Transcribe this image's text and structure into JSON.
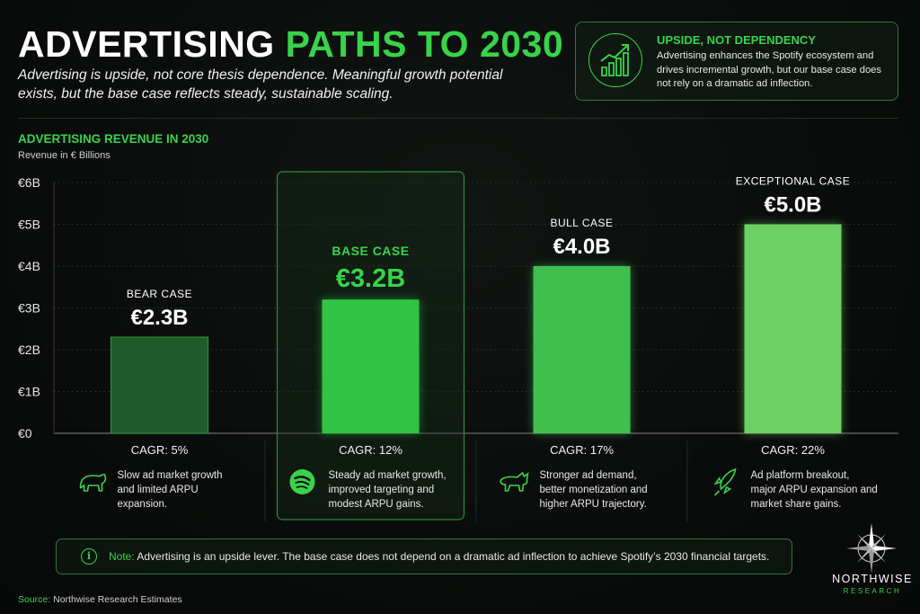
{
  "header": {
    "title_white": "ADVERTISING",
    "title_green": "PATHS TO 2030",
    "subtitle": "Advertising is upside, not core thesis dependence. Meaningful growth potential exists, but the base case reflects steady, sustainable scaling."
  },
  "callout": {
    "icon": "growth-chart-icon",
    "heading": "UPSIDE, NOT DEPENDENCY",
    "body": "Advertising enhances the Spotify ecosystem and drives incremental growth, but our base case does not rely on a dramatic ad inflection."
  },
  "section": {
    "title": "ADVERTISING REVENUE IN 2030",
    "unit_label": "Revenue in € Billions"
  },
  "chart_data": {
    "type": "bar",
    "title": "ADVERTISING REVENUE IN 2030",
    "ylabel": "Revenue in € Billions",
    "ylim": [
      0,
      6
    ],
    "yticks": [
      "€0",
      "€1B",
      "€2B",
      "€3B",
      "€4B",
      "€5B",
      "€6B"
    ],
    "grid": true,
    "highlighted_category": "BASE CASE",
    "categories": [
      "BEAR CASE",
      "BASE CASE",
      "BULL CASE",
      "EXCEPTIONAL CASE"
    ],
    "values": [
      2.3,
      3.2,
      4.0,
      5.0
    ],
    "value_labels": [
      "€2.3B",
      "€3.2B",
      "€4.0B",
      "€5.0B"
    ],
    "cagr_labels": [
      "CAGR: 5%",
      "CAGR: 12%",
      "CAGR: 17%",
      "CAGR: 22%"
    ],
    "descriptions": [
      "Slow ad market growth and limited ARPU expansion.",
      "Steady ad market growth, improved targeting and modest ARPU gains.",
      "Stronger ad demand, better monetization and higher ARPU trajectory.",
      "Ad platform breakout, major ARPU expansion and market share gains."
    ],
    "icons": [
      "bear-icon",
      "spotify-icon",
      "bull-icon",
      "rocket-icon"
    ],
    "colors": [
      "#1f5a2a",
      "#2fc443",
      "#3fbf4e",
      "#6cd063"
    ]
  },
  "note": {
    "lead": "Note:",
    "text": " Advertising is an upside lever. The base case does not depend on a dramatic ad inflection to achieve Spotify’s 2030 financial targets."
  },
  "source": {
    "lead": "Source:",
    "text": " Northwise Research Estimates"
  },
  "brand": {
    "name": "NORTHWISE",
    "sub": "RESEARCH",
    "accent": "#38d34a"
  }
}
